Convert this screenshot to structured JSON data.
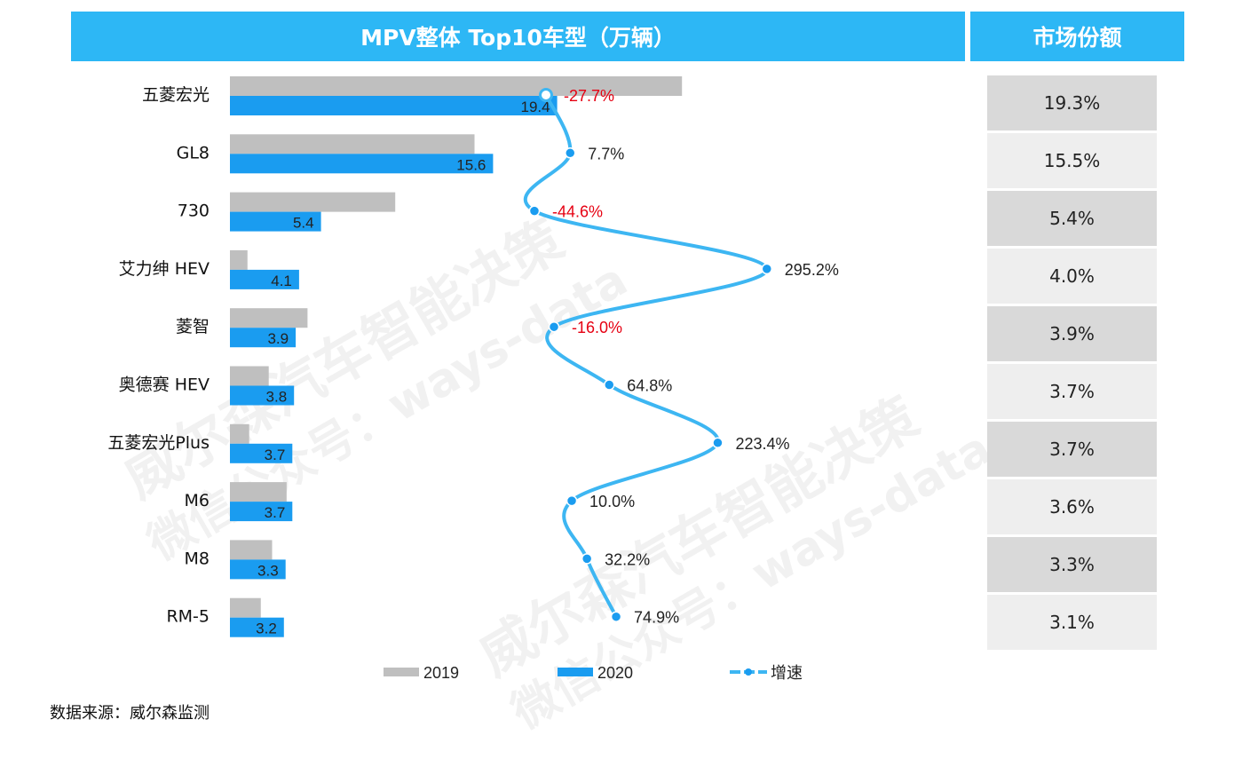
{
  "header": {
    "title": "MPV整体 Top10车型（万辆）",
    "share_title": "市场份额"
  },
  "chart_data": {
    "type": "bar",
    "title": "MPV整体 Top10车型（万辆）",
    "categories": [
      "五菱宏光",
      "GL8",
      "730",
      "艾力绅 HEV",
      "菱智",
      "奥德赛 HEV",
      "五菱宏光Plus",
      "M6",
      "M8",
      "RM-5"
    ],
    "series": [
      {
        "name": "2019",
        "color": "#bfbfbf",
        "values": [
          26.8,
          14.5,
          9.8,
          1.04,
          4.6,
          2.3,
          1.14,
          3.36,
          2.5,
          1.83
        ]
      },
      {
        "name": "2020",
        "color": "#1a9cf0",
        "values": [
          19.4,
          15.6,
          5.4,
          4.1,
          3.9,
          3.8,
          3.7,
          3.7,
          3.3,
          3.2
        ]
      },
      {
        "name": "增速",
        "type": "line",
        "color": "#3db6f2",
        "values": [
          -27.7,
          7.7,
          -44.6,
          295.2,
          -16.0,
          64.8,
          223.4,
          10.0,
          32.2,
          74.9
        ],
        "labels": [
          "-27.7%",
          "7.7%",
          "-44.6%",
          "295.2%",
          "-16.0%",
          "64.8%",
          "223.4%",
          "10.0%",
          "32.2%",
          "74.9%"
        ]
      }
    ],
    "bar_labels_2020": [
      "19.4",
      "15.6",
      "5.4",
      "4.1",
      "3.9",
      "3.8",
      "3.7",
      "3.7",
      "3.3",
      "3.2"
    ],
    "legend": [
      "2019",
      "2020",
      "增速"
    ],
    "legend_position": "bottom"
  },
  "market_share": [
    "19.3%",
    "15.5%",
    "5.4%",
    "4.0%",
    "3.9%",
    "3.7%",
    "3.7%",
    "3.6%",
    "3.3%",
    "3.1%"
  ],
  "footer": {
    "source": "数据来源：威尔森监测"
  },
  "watermark": {
    "line1": "威尔森汽车智能决策",
    "line2": "微信公众号：ways-data"
  },
  "colors": {
    "header": "#2db7f5",
    "negative": "#e60012",
    "line": "#3db6f2"
  }
}
